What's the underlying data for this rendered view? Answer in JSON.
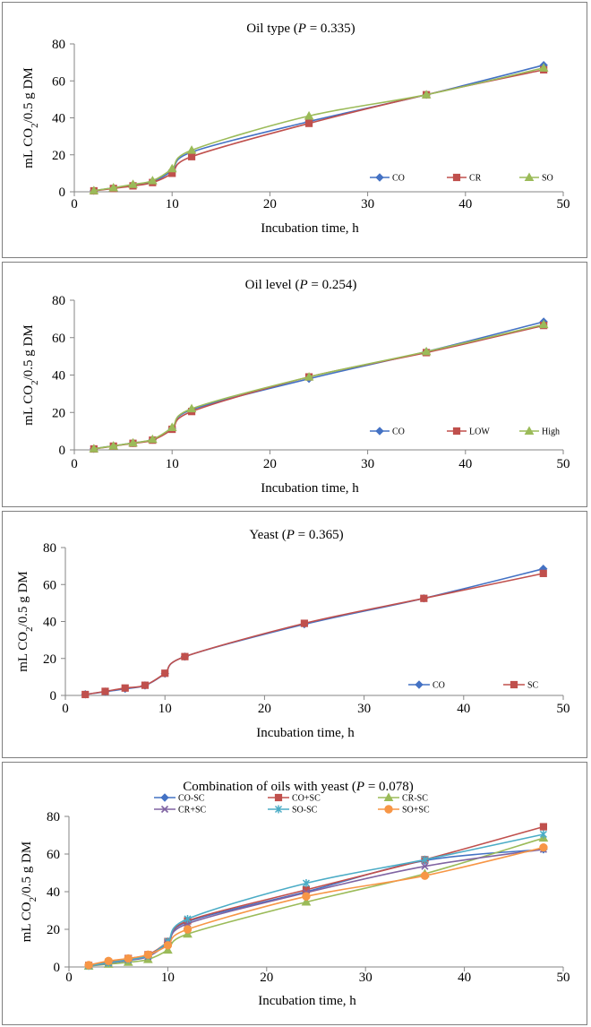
{
  "chart_data": [
    {
      "type": "line",
      "title": "Oil type (P = 0.335)",
      "title_parts": {
        "prefix": "Oil type (",
        "p": "P",
        "suffix": " = 0.335)"
      },
      "xlabel": "Incubation time, h",
      "ylabel": "mL CO2/0.5 g DM",
      "ylabel_parts": {
        "a": "mL CO",
        "sub": "2",
        "b": "/0.5 g DM"
      },
      "xlim": [
        0,
        50
      ],
      "ylim": [
        0,
        80
      ],
      "xticks": [
        "0",
        "10",
        "20",
        "30",
        "40",
        "50"
      ],
      "yticks": [
        "0",
        "20",
        "40",
        "60",
        "80"
      ],
      "grid": false,
      "legend_position": "bottom-right",
      "x": [
        2,
        4,
        6,
        8,
        10,
        12,
        24,
        36,
        48
      ],
      "series": [
        {
          "name": "CO",
          "color": "#4472C4",
          "marker": "diamond",
          "values": [
            0.6,
            2.1,
            3.7,
            5.5,
            11.5,
            21.5,
            38,
            52.5,
            68.5
          ]
        },
        {
          "name": "CR",
          "color": "#C0504D",
          "marker": "square",
          "values": [
            0.5,
            1.8,
            3.2,
            5.0,
            10.0,
            19.0,
            37,
            52.5,
            66
          ]
        },
        {
          "name": "SO",
          "color": "#9BBB59",
          "marker": "triangle",
          "values": [
            0.6,
            2.2,
            4.0,
            6.0,
            12.5,
            22.5,
            41,
            52.5,
            67
          ]
        }
      ]
    },
    {
      "type": "line",
      "title": "Oil level (P = 0.254)",
      "title_parts": {
        "prefix": "Oil level (",
        "p": "P",
        "suffix": " = 0.254)"
      },
      "xlabel": "Incubation time, h",
      "ylabel": "mL CO2/0.5 g DM",
      "ylabel_parts": {
        "a": "mL CO",
        "sub": "2",
        "b": "/0.5 g DM"
      },
      "xlim": [
        0,
        50
      ],
      "ylim": [
        0,
        80
      ],
      "xticks": [
        "0",
        "10",
        "20",
        "30",
        "40",
        "50"
      ],
      "yticks": [
        "0",
        "20",
        "40",
        "60",
        "80"
      ],
      "grid": false,
      "legend_position": "bottom-right",
      "x": [
        2,
        4,
        6,
        8,
        10,
        12,
        24,
        36,
        48
      ],
      "series": [
        {
          "name": "CO",
          "color": "#4472C4",
          "marker": "diamond",
          "values": [
            0.6,
            2.1,
            3.7,
            5.5,
            11.5,
            21.5,
            38,
            52.5,
            68.5
          ]
        },
        {
          "name": "LOW",
          "color": "#C0504D",
          "marker": "square",
          "values": [
            0.5,
            2.0,
            3.5,
            5.2,
            11.0,
            20.5,
            39,
            52,
            66.5
          ]
        },
        {
          "name": "High",
          "color": "#9BBB59",
          "marker": "triangle",
          "values": [
            0.6,
            2.1,
            3.7,
            5.6,
            12.0,
            22.0,
            39,
            52.5,
            67
          ]
        }
      ]
    },
    {
      "type": "line",
      "title": "Yeast (P = 0.365)",
      "title_parts": {
        "prefix": "Yeast (",
        "p": "P",
        "suffix": " = 0.365)"
      },
      "xlabel": "Incubation time, h",
      "ylabel": "mL CO2/0.5 g DM",
      "ylabel_parts": {
        "a": "mL CO",
        "sub": "2",
        "b": "/0.5 g DM"
      },
      "xlim": [
        0,
        50
      ],
      "ylim": [
        0,
        80
      ],
      "xticks": [
        "0",
        "10",
        "20",
        "30",
        "40",
        "50"
      ],
      "yticks": [
        "0",
        "20",
        "40",
        "60",
        "80"
      ],
      "grid": false,
      "legend_position": "bottom-right",
      "x": [
        2,
        4,
        6,
        8,
        10,
        12,
        24,
        36,
        48
      ],
      "series": [
        {
          "name": "CO",
          "color": "#4472C4",
          "marker": "diamond",
          "values": [
            0.6,
            2.0,
            3.6,
            5.4,
            11.8,
            21.0,
            38.5,
            52.5,
            68.5
          ]
        },
        {
          "name": "SC",
          "color": "#C0504D",
          "marker": "square",
          "values": [
            0.5,
            2.2,
            4.0,
            5.5,
            12.0,
            21.0,
            39,
            52.5,
            66
          ]
        }
      ]
    },
    {
      "type": "line",
      "title": "Combination of oils with yeast (P = 0.078)",
      "title_parts": {
        "prefix": "Combination of oils with yeast (",
        "p": "P",
        "suffix": " = 0.078)"
      },
      "xlabel": "Incubation time, h",
      "ylabel": "mL CO2/0.5 g DM",
      "ylabel_parts": {
        "a": "mL CO",
        "sub": "2",
        "b": "/0.5 g DM"
      },
      "xlim": [
        0,
        50
      ],
      "ylim": [
        0,
        80
      ],
      "xticks": [
        "0",
        "10",
        "20",
        "30",
        "40",
        "50"
      ],
      "yticks": [
        "0",
        "20",
        "40",
        "60",
        "80"
      ],
      "grid": false,
      "legend_position": "top",
      "x": [
        2,
        4,
        6,
        8,
        10,
        12,
        24,
        36,
        48
      ],
      "series": [
        {
          "name": "CO-SC",
          "color": "#4472C4",
          "marker": "diamond",
          "values": [
            0.8,
            2.0,
            3.5,
            5.5,
            13.0,
            24.0,
            40,
            56.5,
            62.5
          ]
        },
        {
          "name": "CO+SC",
          "color": "#C0504D",
          "marker": "square",
          "values": [
            0.8,
            2.5,
            4.5,
            6.5,
            13.5,
            24.5,
            41,
            57,
            74.5
          ]
        },
        {
          "name": "CR-SC",
          "color": "#9BBB59",
          "marker": "triangle",
          "values": [
            0.5,
            1.5,
            2.5,
            4.0,
            9.0,
            17.5,
            34.5,
            49.5,
            68.5
          ]
        },
        {
          "name": "CR+SC",
          "color": "#8064A2",
          "marker": "x",
          "values": [
            0.6,
            2.0,
            3.8,
            5.5,
            12.5,
            23.0,
            39.5,
            53.5,
            62.5
          ]
        },
        {
          "name": "SO-SC",
          "color": "#4BACC6",
          "marker": "star",
          "values": [
            0.6,
            2.2,
            4.0,
            6.0,
            13.5,
            25.5,
            44.5,
            57,
            70.5
          ]
        },
        {
          "name": "SO+SC",
          "color": "#F79646",
          "marker": "circle",
          "values": [
            1.0,
            3.2,
            4.5,
            6.5,
            11.5,
            20.0,
            37.5,
            48.5,
            63.5
          ]
        }
      ]
    }
  ]
}
